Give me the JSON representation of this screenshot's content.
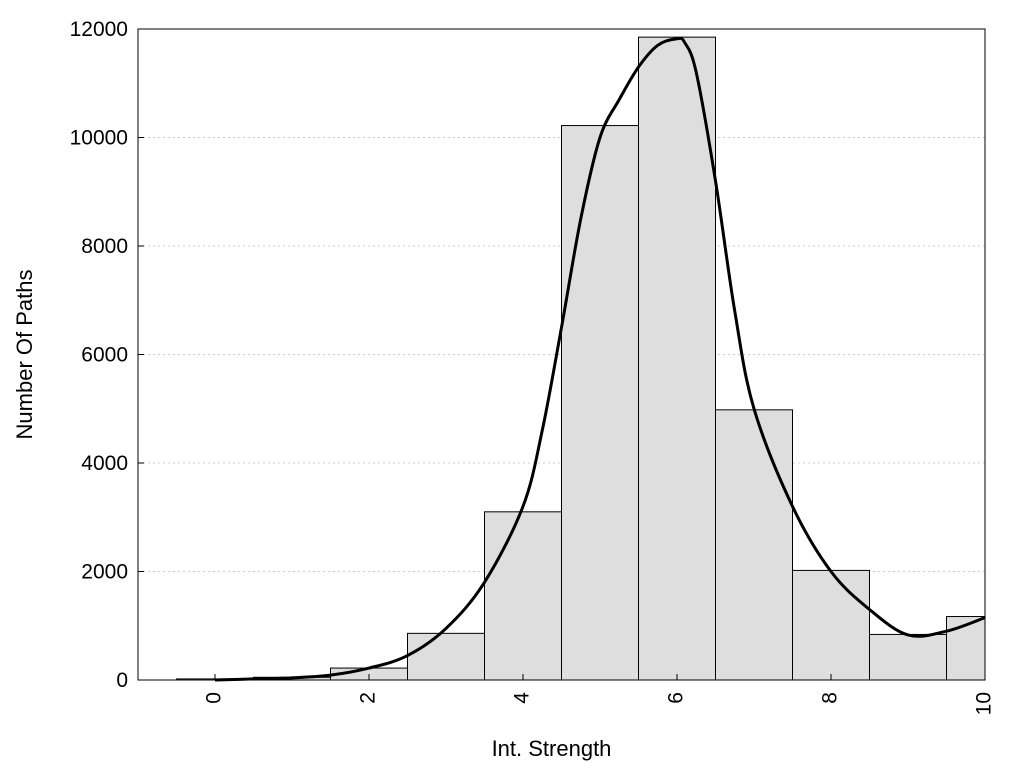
{
  "chart_data": {
    "type": "bar",
    "title": "",
    "xlabel": "Int. Strength",
    "ylabel": "Number Of Paths",
    "xlim": [
      -1,
      10
    ],
    "ylim": [
      0,
      12000
    ],
    "x_ticks": [
      0,
      2,
      4,
      6,
      8,
      10
    ],
    "y_ticks": [
      0,
      2000,
      4000,
      6000,
      8000,
      10000,
      12000
    ],
    "grid": "horizontal dotted",
    "legend": "none",
    "colors": {
      "bar_fill": "#dedede",
      "bar_edge": "#000000",
      "curve": "#000000",
      "grid": "#cccccc"
    },
    "series": [
      {
        "type": "bar",
        "x": [
          0,
          1,
          2,
          3,
          4,
          5,
          6,
          7,
          8,
          9,
          10
        ],
        "values": [
          20,
          50,
          220,
          860,
          3100,
          10220,
          11850,
          4980,
          2020,
          840,
          1170
        ]
      },
      {
        "type": "line",
        "x": [
          0,
          0.5,
          1,
          1.5,
          2,
          2.5,
          3,
          3.5,
          4,
          4.25,
          4.5,
          4.75,
          5,
          5.25,
          5.5,
          5.75,
          6,
          6.1,
          6.25,
          6.5,
          6.75,
          7,
          7.5,
          8,
          8.5,
          9,
          9.5,
          10
        ],
        "y": [
          0,
          20,
          40,
          90,
          220,
          450,
          950,
          1800,
          3200,
          4600,
          6500,
          8500,
          10000,
          10700,
          11300,
          11700,
          11820,
          11750,
          11200,
          9200,
          6800,
          5000,
          3200,
          2000,
          1300,
          830,
          900,
          1150
        ]
      }
    ]
  }
}
